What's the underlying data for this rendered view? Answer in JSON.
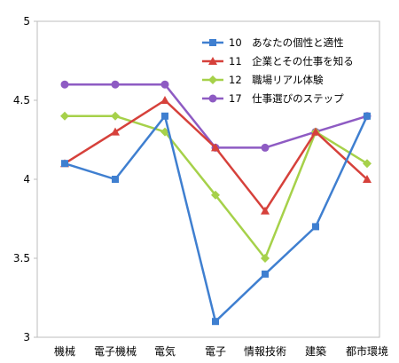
{
  "chart_data": {
    "type": "line",
    "categories": [
      "機械",
      "電子機械",
      "電気",
      "電子",
      "情報技術",
      "建築",
      "都市環境"
    ],
    "ylim": [
      3,
      5
    ],
    "yticks": [
      "3",
      "3.5",
      "4",
      "4.5",
      "5"
    ],
    "grid": false,
    "legend_position": "top-right",
    "series": [
      {
        "name": "10　あなたの個性と適性",
        "color": "#3f7fd0",
        "marker": "square",
        "values": [
          4.1,
          4.0,
          4.4,
          3.1,
          3.4,
          3.7,
          4.4
        ]
      },
      {
        "name": "11　企業とその仕事を知る",
        "color": "#d6413b",
        "marker": "triangle",
        "values": [
          4.1,
          4.3,
          4.5,
          4.2,
          3.8,
          4.3,
          4.0
        ]
      },
      {
        "name": "12　職場リアル体験",
        "color": "#a6d14a",
        "marker": "diamond",
        "values": [
          4.4,
          4.4,
          4.3,
          3.9,
          3.5,
          4.3,
          4.1
        ]
      },
      {
        "name": "17　仕事選びのステップ",
        "color": "#8e5bc3",
        "marker": "circle",
        "values": [
          4.6,
          4.6,
          4.6,
          4.2,
          4.2,
          4.3,
          4.4
        ]
      }
    ]
  }
}
